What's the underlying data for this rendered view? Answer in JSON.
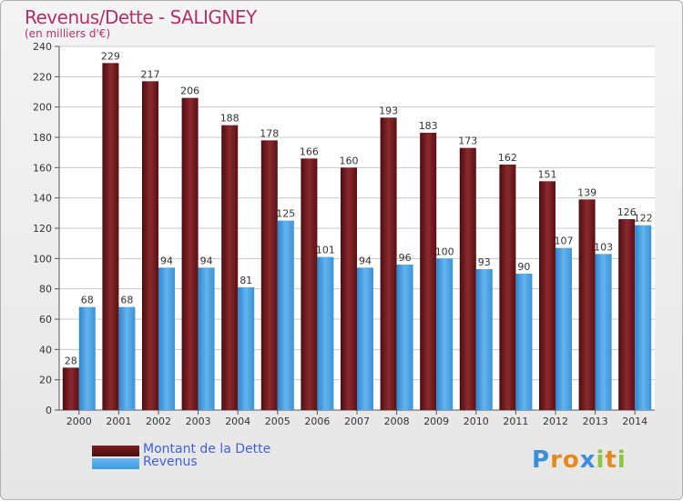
{
  "chart_data": {
    "type": "bar",
    "title": "Revenus/Dette - SALIGNEY",
    "subtitle": "(en milliers d'€)",
    "categories": [
      "2000",
      "2001",
      "2002",
      "2003",
      "2004",
      "2005",
      "2006",
      "2007",
      "2008",
      "2009",
      "2010",
      "2011",
      "2012",
      "2013",
      "2014"
    ],
    "series": [
      {
        "name": "Montant de la Dette",
        "color": "#7a1e22",
        "values": [
          28,
          229,
          217,
          206,
          188,
          178,
          166,
          160,
          193,
          183,
          173,
          162,
          151,
          139,
          126
        ]
      },
      {
        "name": "Revenus",
        "color": "#3f9de0",
        "values": [
          68,
          68,
          94,
          94,
          81,
          125,
          101,
          94,
          96,
          100,
          93,
          90,
          107,
          103,
          122
        ]
      }
    ],
    "ylim": [
      0,
      240
    ],
    "yticks": [
      0,
      20,
      40,
      60,
      80,
      100,
      120,
      140,
      160,
      180,
      200,
      220,
      240
    ],
    "grid": true,
    "legend_position": "bottom-left"
  },
  "brand": {
    "letters": [
      {
        "char": "P",
        "color": "#3a8fd8"
      },
      {
        "char": "r",
        "color": "#e48a1c"
      },
      {
        "char": "o",
        "color": "#e48a1c"
      },
      {
        "char": "x",
        "color": "#3a8fd8"
      },
      {
        "char": "i",
        "color": "#8cc63f"
      },
      {
        "char": "t",
        "color": "#e48a1c"
      },
      {
        "char": "i",
        "color": "#8cc63f"
      }
    ]
  }
}
